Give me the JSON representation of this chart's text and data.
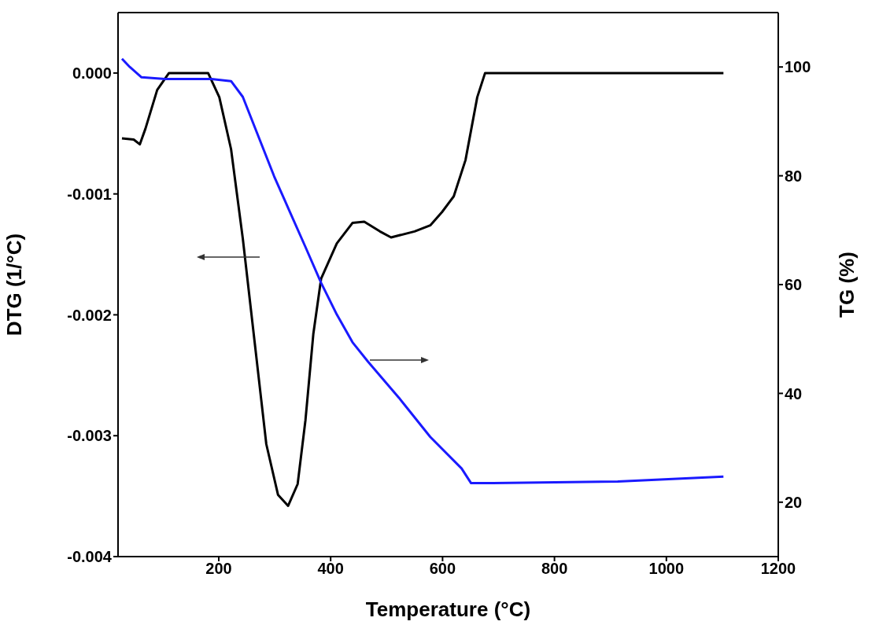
{
  "chart_data": {
    "type": "line",
    "xlabel": "Temperature (°C)",
    "ylabel": "DTG (1/°C)",
    "y2label": "TG (%)",
    "xlim": [
      20,
      1200
    ],
    "xticks": [
      200,
      400,
      600,
      800,
      1000,
      1200
    ],
    "ylim": [
      -0.004,
      0.0005
    ],
    "yticks": [
      {
        "value": -0.004,
        "label": "-0.004"
      },
      {
        "value": -0.003,
        "label": "-0.003"
      },
      {
        "value": -0.002,
        "label": "-0.002"
      },
      {
        "value": -0.001,
        "label": "-0.001"
      },
      {
        "value": 0,
        "label": "0.000"
      }
    ],
    "y2lim": [
      10,
      110
    ],
    "y2ticks": [
      20,
      40,
      60,
      80,
      100
    ],
    "marker": "none",
    "line_style": "solid",
    "series": [
      {
        "color": "#000000",
        "x": [
          27,
          48,
          59,
          69,
          90,
          111,
          153,
          181,
          201,
          222,
          243,
          264,
          285,
          306,
          324,
          341,
          355,
          369,
          383,
          411,
          439,
          460,
          488,
          508,
          550,
          578,
          599,
          620,
          641,
          662,
          676,
          704,
          774,
          913,
          997,
          1025,
          1053,
          1102
        ],
        "values": [
          -0.00054,
          -0.00055,
          -0.00059,
          -0.00046,
          -0.00014,
          0,
          0,
          0,
          -0.0002,
          -0.00063,
          -0.00137,
          -0.00222,
          -0.00307,
          -0.00349,
          -0.00358,
          -0.0034,
          -0.00287,
          -0.00216,
          -0.0017,
          -0.00141,
          -0.00124,
          -0.00123,
          -0.00131,
          -0.00136,
          -0.00131,
          -0.00126,
          -0.00115,
          -0.00102,
          -0.00072,
          -0.0002,
          0,
          0,
          0,
          0,
          0,
          0,
          0,
          0
        ]
      },
      {
        "color": "#1a1aff",
        "axis": "y2",
        "x": [
          27,
          41,
          62,
          104,
          187,
          222,
          243,
          271,
          299,
          327,
          355,
          383,
          411,
          439,
          467,
          522,
          578,
          634,
          651,
          690,
          913,
          1102
        ],
        "values": [
          101.5,
          100,
          98.1,
          97.8,
          97.8,
          97.4,
          94.5,
          87.2,
          79.9,
          73.4,
          66.9,
          60.3,
          54.5,
          49.4,
          45.8,
          39.2,
          32,
          26.2,
          23.5,
          23.5,
          23.8,
          24.7
        ]
      }
    ]
  }
}
